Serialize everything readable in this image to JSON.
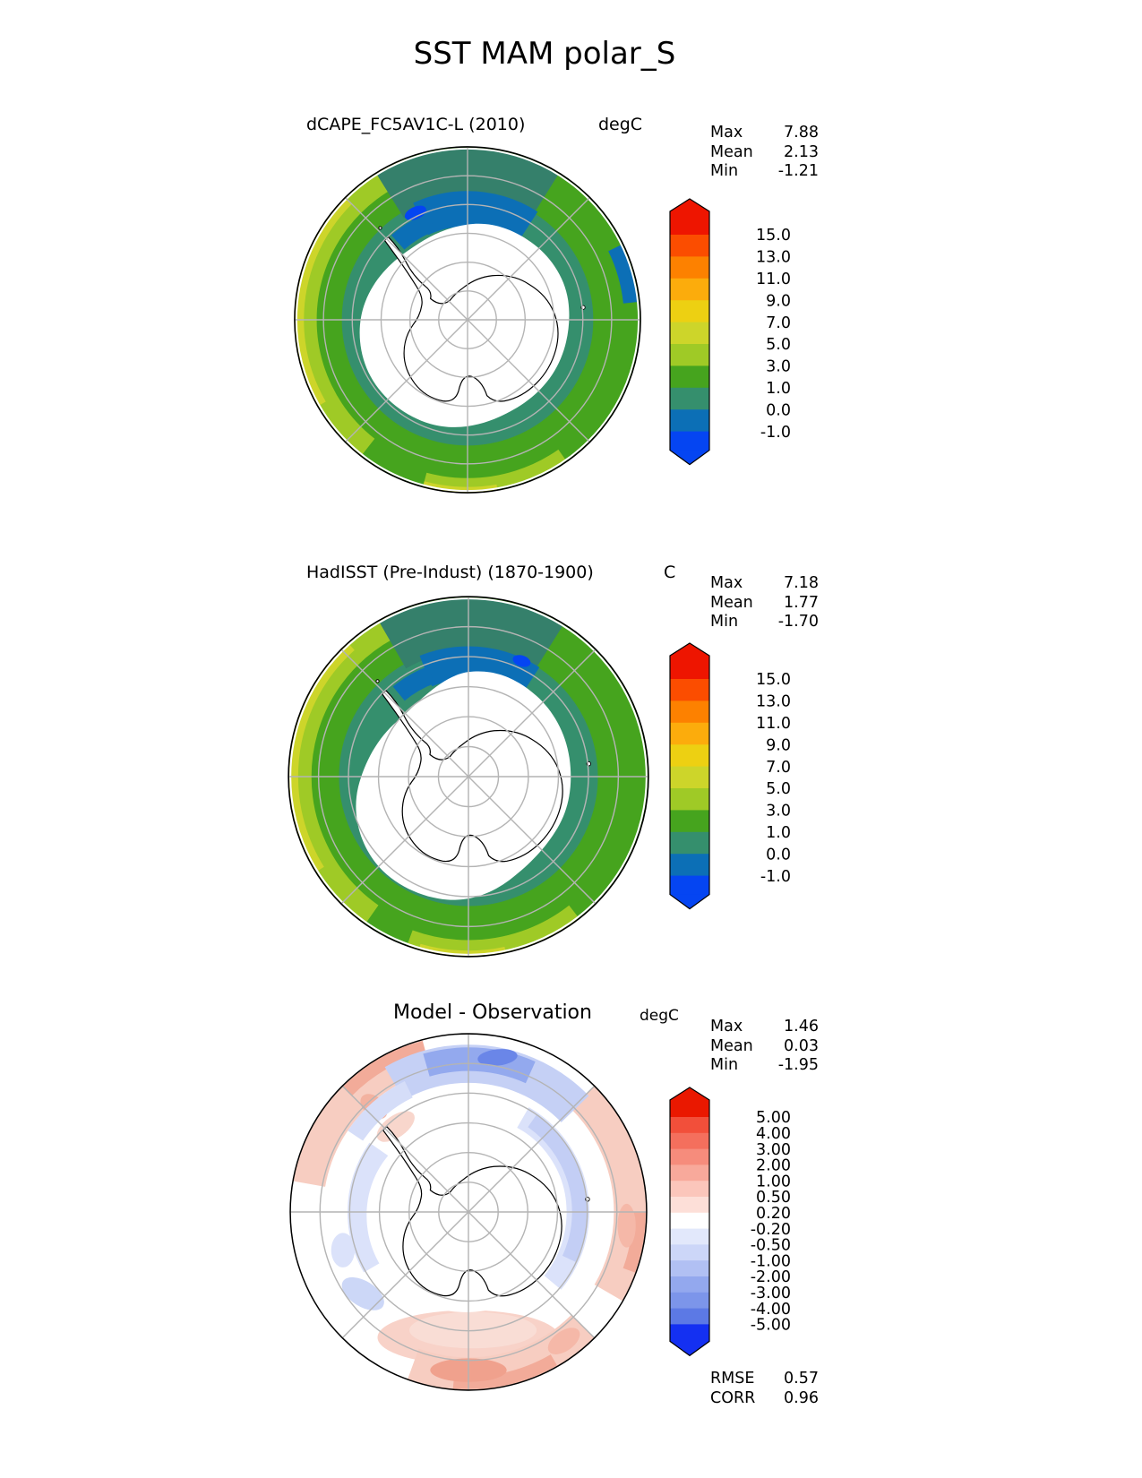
{
  "title": "SST MAM polar_S",
  "panels": [
    {
      "title": "dCAPE_FC5AV1C-L (2010)",
      "units": "degC",
      "stats": {
        "rows": [
          {
            "label": "Max",
            "value": "7.88"
          },
          {
            "label": "Mean",
            "value": "2.13"
          },
          {
            "label": "Min",
            "value": "-1.21"
          }
        ]
      },
      "colorbar": {
        "cap_top": {
          "color": "#ee1500"
        },
        "segments": [
          {
            "color": "#fb4d00",
            "tick": "15.0"
          },
          {
            "color": "#fd8100",
            "tick": "13.0"
          },
          {
            "color": "#fcac0c",
            "tick": "11.0"
          },
          {
            "color": "#edd012",
            "tick": "9.0"
          },
          {
            "color": "#cdd52a",
            "tick": "7.0"
          },
          {
            "color": "#9fca26",
            "tick": "5.0"
          },
          {
            "color": "#46a41e",
            "tick": "3.0"
          },
          {
            "color": "#358f6d",
            "tick": "1.0"
          },
          {
            "color": "#0c6fb6",
            "tick": "0.0"
          }
        ],
        "cap_bottom": {
          "color": "#0545f2",
          "tick": "-1.0"
        }
      }
    },
    {
      "title": "HadISST (Pre-Indust) (1870-1900)",
      "units": "C",
      "stats": {
        "rows": [
          {
            "label": "Max",
            "value": "7.18"
          },
          {
            "label": "Mean",
            "value": "1.77"
          },
          {
            "label": "Min",
            "value": "-1.70"
          }
        ]
      },
      "colorbar": {
        "cap_top": {
          "color": "#ee1500"
        },
        "segments": [
          {
            "color": "#fb4d00",
            "tick": "15.0"
          },
          {
            "color": "#fd8100",
            "tick": "13.0"
          },
          {
            "color": "#fcac0c",
            "tick": "11.0"
          },
          {
            "color": "#edd012",
            "tick": "9.0"
          },
          {
            "color": "#cdd52a",
            "tick": "7.0"
          },
          {
            "color": "#9fca26",
            "tick": "5.0"
          },
          {
            "color": "#46a41e",
            "tick": "3.0"
          },
          {
            "color": "#358f6d",
            "tick": "1.0"
          },
          {
            "color": "#0c6fb6",
            "tick": "0.0"
          }
        ],
        "cap_bottom": {
          "color": "#0545f2",
          "tick": "-1.0"
        }
      }
    },
    {
      "title": "Model - Observation",
      "units": "degC",
      "stats": {
        "rows": [
          {
            "label": "Max",
            "value": "1.46"
          },
          {
            "label": "Mean",
            "value": "0.03"
          },
          {
            "label": "Min",
            "value": "-1.95"
          }
        ]
      },
      "metrics": {
        "rows": [
          {
            "label": "RMSE",
            "value": "0.57"
          },
          {
            "label": "CORR",
            "value": "0.96"
          }
        ]
      },
      "colorbar": {
        "cap_top": {
          "color": "#ea1800"
        },
        "segments": [
          {
            "color": "#f24f3a",
            "tick": "5.00"
          },
          {
            "color": "#f46f5d",
            "tick": "4.00"
          },
          {
            "color": "#f68c7c",
            "tick": "3.00"
          },
          {
            "color": "#f8a99b",
            "tick": "2.00"
          },
          {
            "color": "#fbc6bb",
            "tick": "1.00"
          },
          {
            "color": "#fddfd8",
            "tick": "0.50"
          },
          {
            "color": "#ffffff",
            "tick": "0.20"
          },
          {
            "color": "#e2e8fb",
            "tick": "-0.20"
          },
          {
            "color": "#ccd6f8",
            "tick": "-0.50"
          },
          {
            "color": "#b1c0f3",
            "tick": "-1.00"
          },
          {
            "color": "#93a8ee",
            "tick": "-2.00"
          },
          {
            "color": "#7c95ea",
            "tick": "-3.00"
          },
          {
            "color": "#5c79e5",
            "tick": "-4.00"
          }
        ],
        "cap_bottom": {
          "color": "#1430f2",
          "tick": "-5.00"
        }
      }
    }
  ],
  "map_colors": {
    "ocean_green": "#46a41e",
    "ocean_lime": "#9fca26",
    "ocean_yellow_green": "#cdd52a",
    "ocean_teal": "#358f6d",
    "ocean_blue": "#0c6fb6",
    "ocean_bright_blue": "#0545f2",
    "diff_pale_red": "#f7cdc1",
    "diff_red": "#f2ab99",
    "diff_blue": "#93a9ee",
    "diff_pale_blue": "#dbe2fa",
    "land": "#ffffff",
    "coastline": "#000000",
    "graticule": "#b4b4b4"
  },
  "chart_data": [
    {
      "type": "heatmap",
      "subtype": "filled_contour_map",
      "projection": "south_polar_stereographic",
      "region": "polar_S",
      "season": "MAM",
      "variable": "SST",
      "title": "dCAPE_FC5AV1C-L (2010)",
      "units": "degC",
      "levels": [
        -1.0,
        0.0,
        1.0,
        3.0,
        5.0,
        7.0,
        9.0,
        11.0,
        13.0,
        15.0
      ],
      "colorbar_extend": "both",
      "stats": {
        "max": 7.88,
        "mean": 2.13,
        "min": -1.21
      }
    },
    {
      "type": "heatmap",
      "subtype": "filled_contour_map",
      "projection": "south_polar_stereographic",
      "region": "polar_S",
      "season": "MAM",
      "variable": "SST",
      "title": "HadISST (Pre-Indust) (1870-1900)",
      "units": "C",
      "levels": [
        -1.0,
        0.0,
        1.0,
        3.0,
        5.0,
        7.0,
        9.0,
        11.0,
        13.0,
        15.0
      ],
      "colorbar_extend": "both",
      "stats": {
        "max": 7.18,
        "mean": 1.77,
        "min": -1.7
      }
    },
    {
      "type": "heatmap",
      "subtype": "filled_contour_map_difference",
      "projection": "south_polar_stereographic",
      "region": "polar_S",
      "season": "MAM",
      "variable": "SST",
      "title": "Model - Observation",
      "units": "degC",
      "levels": [
        -5.0,
        -4.0,
        -3.0,
        -2.0,
        -1.0,
        -0.5,
        -0.2,
        0.2,
        0.5,
        1.0,
        2.0,
        3.0,
        4.0,
        5.0
      ],
      "colorbar_extend": "both",
      "stats": {
        "max": 1.46,
        "mean": 0.03,
        "min": -1.95
      },
      "rmse": 0.57,
      "corr": 0.96
    }
  ]
}
